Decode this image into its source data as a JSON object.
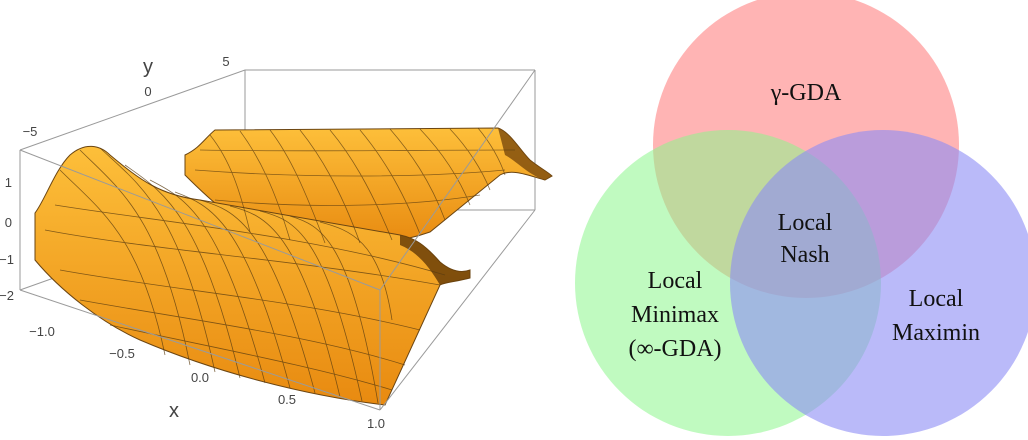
{
  "surface_plot": {
    "axis_x": {
      "label": "x",
      "ticks": [
        "−1.0",
        "−0.5",
        "0.0",
        "0.5",
        "1.0"
      ]
    },
    "axis_y": {
      "label": "y",
      "ticks": [
        "−5",
        "0",
        "5"
      ]
    },
    "axis_z": {
      "ticks": [
        "1",
        "0",
        "−1",
        "−2"
      ]
    },
    "surface_color": "#f7a21c",
    "mesh_color": "#5a3c10"
  },
  "venn": {
    "circles": [
      {
        "name": "gamma-gda",
        "color": "#ff8c8c"
      },
      {
        "name": "local-minimax",
        "color": "#8cf58c"
      },
      {
        "name": "local-maximin",
        "color": "#8c8cf5"
      }
    ],
    "labels": {
      "top": "γ-GDA",
      "center_line1": "Local",
      "center_line2": "Nash",
      "left_line1": "Local",
      "left_line2": "Minimax",
      "left_line3": "(∞-GDA)",
      "right_line1": "Local",
      "right_line2": "Maximin"
    }
  }
}
